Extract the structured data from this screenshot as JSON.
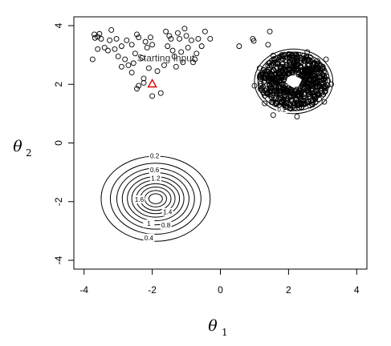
{
  "chart_data": {
    "type": "scatter",
    "title": "",
    "xlabel": "θ",
    "xlabel_sub": "1",
    "ylabel": "θ",
    "ylabel_sub": "2",
    "xlim": [
      -4.3,
      4.3
    ],
    "ylim": [
      -4.3,
      4.3
    ],
    "xticks": [
      -4,
      -2,
      0,
      2,
      4
    ],
    "yticks": [
      -4,
      -2,
      0,
      2,
      4
    ],
    "grid": false,
    "annotation": {
      "text": "Starting Input",
      "x": -1.6,
      "y": 2.78
    },
    "start_point": {
      "x": -2.0,
      "y": 2.02,
      "marker": "triangle",
      "color": "#e00000"
    },
    "contours": [
      {
        "name": "ring",
        "cx": 2.15,
        "cy": 2.1,
        "radii_x": [
          0.93,
          1.05,
          1.15
        ],
        "radii_y": [
          0.9,
          1.0,
          1.1
        ],
        "labels": [
          {
            "text": "0.2",
            "x": 1.8,
            "y": 1.15
          }
        ]
      },
      {
        "name": "gaussian",
        "cx": -1.9,
        "cy": -1.9,
        "radii_x": [
          1.6,
          1.33,
          1.14,
          0.98,
          0.83,
          0.7,
          0.57,
          0.45,
          0.32,
          0.2
        ],
        "radii_y": [
          1.45,
          1.21,
          1.04,
          0.89,
          0.75,
          0.63,
          0.51,
          0.4,
          0.28,
          0.17
        ],
        "labels": [
          {
            "text": "0.2",
            "x": -1.93,
            "y": -0.44
          },
          {
            "text": "0.6",
            "x": -1.93,
            "y": -0.92
          },
          {
            "text": "1.2",
            "x": -1.9,
            "y": -1.2
          },
          {
            "text": "1.6",
            "x": -2.38,
            "y": -1.92
          },
          {
            "text": "1.4",
            "x": -1.55,
            "y": -2.35
          },
          {
            "text": "1",
            "x": -2.1,
            "y": -2.75
          },
          {
            "text": "0.8",
            "x": -1.6,
            "y": -2.8
          },
          {
            "text": "0.4",
            "x": -2.1,
            "y": -3.23
          }
        ]
      }
    ],
    "scatter_points": [
      [
        -3.7,
        3.7
      ],
      [
        -3.6,
        3.62
      ],
      [
        -3.55,
        3.72
      ],
      [
        -3.68,
        3.58
      ],
      [
        -3.5,
        3.55
      ],
      [
        -3.75,
        2.85
      ],
      [
        -3.6,
        3.2
      ],
      [
        -3.4,
        3.25
      ],
      [
        -3.2,
        3.85
      ],
      [
        -3.25,
        3.5
      ],
      [
        -3.05,
        3.55
      ],
      [
        -3.3,
        3.15
      ],
      [
        -3.1,
        3.2
      ],
      [
        -3.0,
        2.95
      ],
      [
        -2.9,
        3.3
      ],
      [
        -2.75,
        3.5
      ],
      [
        -2.8,
        2.85
      ],
      [
        -2.6,
        3.35
      ],
      [
        -2.7,
        2.65
      ],
      [
        -2.45,
        3.7
      ],
      [
        -2.4,
        3.6
      ],
      [
        -2.5,
        3.05
      ],
      [
        -2.55,
        2.72
      ],
      [
        -2.3,
        2.9
      ],
      [
        -2.2,
        3.45
      ],
      [
        -2.15,
        3.25
      ],
      [
        -2.05,
        3.6
      ],
      [
        -2.0,
        3.35
      ],
      [
        -2.1,
        2.55
      ],
      [
        -2.25,
        2.2
      ],
      [
        -2.45,
        1.85
      ],
      [
        -2.4,
        1.95
      ],
      [
        -2.25,
        2.05
      ],
      [
        -2.0,
        1.6
      ],
      [
        -1.75,
        1.7
      ],
      [
        -1.6,
        3.8
      ],
      [
        -1.5,
        3.65
      ],
      [
        -1.45,
        3.55
      ],
      [
        -1.55,
        3.3
      ],
      [
        -1.4,
        3.15
      ],
      [
        -1.35,
        2.95
      ],
      [
        -1.25,
        3.75
      ],
      [
        -1.2,
        3.55
      ],
      [
        -1.15,
        3.1
      ],
      [
        -1.1,
        2.75
      ],
      [
        -1.05,
        3.9
      ],
      [
        -1.0,
        3.65
      ],
      [
        -0.95,
        3.25
      ],
      [
        -0.85,
        3.5
      ],
      [
        -0.8,
        2.75
      ],
      [
        -0.75,
        2.85
      ],
      [
        -0.7,
        3.05
      ],
      [
        -0.65,
        3.55
      ],
      [
        -0.55,
        3.3
      ],
      [
        -0.45,
        3.8
      ],
      [
        -0.3,
        3.55
      ],
      [
        -1.85,
        2.45
      ],
      [
        -2.6,
        2.4
      ],
      [
        -2.9,
        2.6
      ],
      [
        -1.3,
        2.6
      ],
      [
        -1.65,
        2.65
      ],
      [
        0.55,
        3.3
      ],
      [
        0.95,
        3.55
      ],
      [
        0.98,
        3.48
      ],
      [
        1.45,
        3.8
      ],
      [
        1.4,
        3.35
      ],
      [
        1.8,
        3.0
      ],
      [
        1.55,
        2.98
      ],
      [
        2.55,
        3.1
      ],
      [
        2.85,
        2.8
      ],
      [
        1.15,
        2.55
      ],
      [
        1.3,
        1.35
      ],
      [
        3.05,
        1.4
      ],
      [
        2.25,
        0.9
      ],
      [
        1.55,
        0.95
      ],
      [
        3.1,
        2.85
      ],
      [
        1.0,
        1.95
      ],
      [
        3.25,
        2.0
      ]
    ],
    "ring_cluster": {
      "cx": 2.15,
      "cy": 2.1,
      "inner_rx": 0.28,
      "inner_ry": 0.26,
      "outer_rx": 1.02,
      "outer_ry": 0.95,
      "count": 620,
      "seed": 7
    }
  }
}
